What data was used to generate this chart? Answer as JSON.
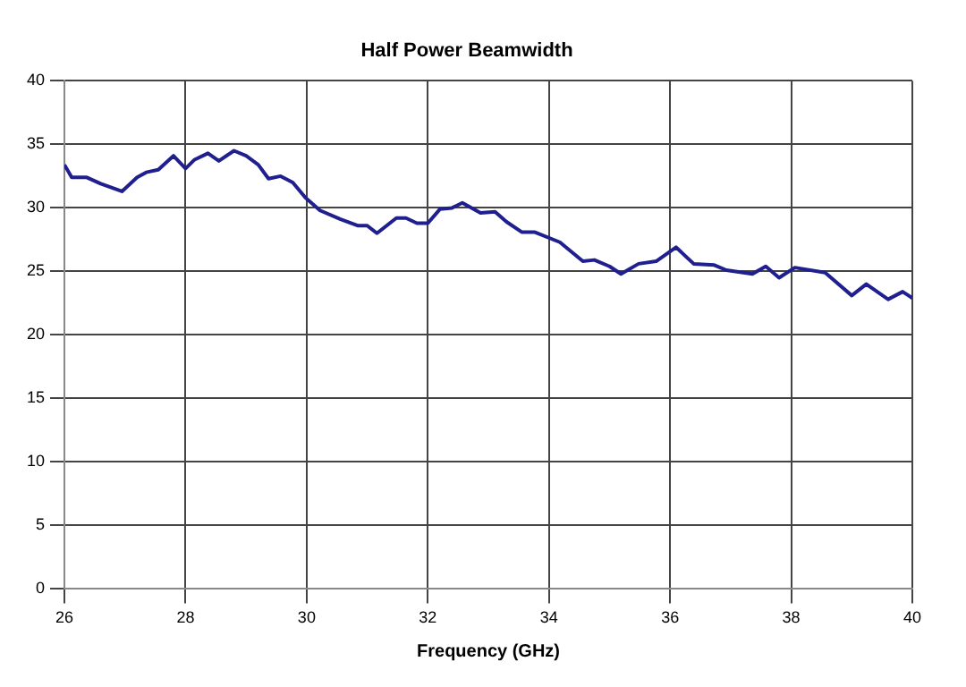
{
  "chart_data": {
    "type": "line",
    "title": "Half Power Beamwidth",
    "xlabel": "Frequency (GHz)",
    "x": [
      26.0,
      26.12,
      26.37,
      26.6,
      26.95,
      27.2,
      27.35,
      27.55,
      27.8,
      28.0,
      28.15,
      28.37,
      28.55,
      28.8,
      29.0,
      29.2,
      29.37,
      29.57,
      29.77,
      29.98,
      30.22,
      30.56,
      30.85,
      31.0,
      31.16,
      31.48,
      31.64,
      31.82,
      32.0,
      32.2,
      32.4,
      32.57,
      32.87,
      33.11,
      33.3,
      33.55,
      33.76,
      34.18,
      34.56,
      34.75,
      35.0,
      35.19,
      35.48,
      35.77,
      36.1,
      36.39,
      36.73,
      36.93,
      37.36,
      37.58,
      37.8,
      38.06,
      38.56,
      39.0,
      39.24,
      39.6,
      39.84,
      40.0
    ],
    "series": [
      {
        "color": "#1f1f8f",
        "values": [
          33.4,
          32.4,
          32.4,
          31.9,
          31.3,
          32.4,
          32.8,
          33.0,
          34.1,
          33.1,
          33.8,
          34.3,
          33.7,
          34.5,
          34.1,
          33.4,
          32.3,
          32.5,
          32.0,
          30.8,
          29.8,
          29.1,
          28.6,
          28.6,
          28.0,
          29.2,
          29.2,
          28.8,
          28.8,
          29.9,
          30.0,
          30.4,
          29.6,
          29.7,
          28.9,
          28.1,
          28.1,
          27.3,
          25.8,
          25.9,
          25.4,
          24.8,
          25.6,
          25.8,
          26.9,
          25.6,
          25.5,
          25.1,
          24.8,
          25.4,
          24.5,
          25.3,
          24.9,
          23.1,
          24.0,
          22.8,
          23.4,
          22.9
        ]
      }
    ],
    "xlim": [
      26,
      40
    ],
    "xticks": [
      26,
      28,
      30,
      32,
      34,
      36,
      38,
      40
    ],
    "ylim": [
      0,
      40
    ],
    "yticks": [
      0,
      5,
      10,
      15,
      20,
      25,
      30,
      35,
      40
    ],
    "grid": true,
    "marker": "none",
    "line_style": "solid",
    "legend": false
  }
}
